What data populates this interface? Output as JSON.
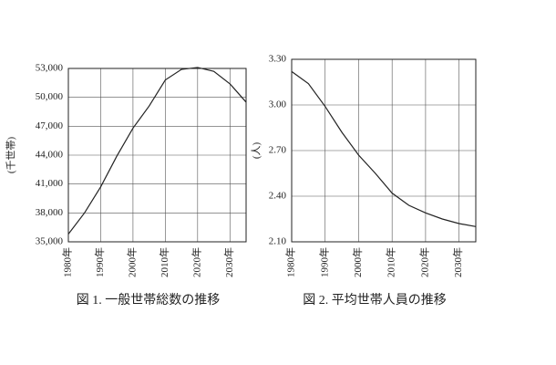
{
  "chart_data": [
    {
      "type": "line",
      "title": "図 1. 一般世帯総数の推移",
      "y_label": "(千世帯)",
      "x": [
        1980,
        1985,
        1990,
        1995,
        2000,
        2005,
        2010,
        2015,
        2020,
        2025,
        2030,
        2035
      ],
      "values": [
        35800,
        38000,
        40700,
        43900,
        46800,
        49100,
        51800,
        52900,
        53100,
        52700,
        51400,
        49500
      ],
      "color": "#222222",
      "xlim": [
        1980,
        2035
      ],
      "xticks": [
        {
          "value": 1980,
          "label": "1980年"
        },
        {
          "value": 1990,
          "label": "1990年"
        },
        {
          "value": 2000,
          "label": "2000年"
        },
        {
          "value": 2010,
          "label": "2010年"
        },
        {
          "value": 2020,
          "label": "2020年"
        },
        {
          "value": 2030,
          "label": "2030年"
        }
      ],
      "ylim": [
        35000,
        53000
      ],
      "yticks": [
        {
          "value": 35000,
          "label": "35,000"
        },
        {
          "value": 38000,
          "label": "38,000"
        },
        {
          "value": 41000,
          "label": "41,000"
        },
        {
          "value": 44000,
          "label": "44,000"
        },
        {
          "value": 47000,
          "label": "47,000"
        },
        {
          "value": 50000,
          "label": "50,000"
        },
        {
          "value": 53000,
          "label": "53,000"
        }
      ],
      "grid": true
    },
    {
      "type": "line",
      "title": "図 2. 平均世帯人員の推移",
      "y_label": "(人)",
      "x": [
        1980,
        1985,
        1990,
        1995,
        2000,
        2005,
        2010,
        2015,
        2020,
        2025,
        2030,
        2035
      ],
      "values": [
        3.22,
        3.14,
        2.99,
        2.82,
        2.67,
        2.55,
        2.42,
        2.34,
        2.29,
        2.25,
        2.22,
        2.2
      ],
      "color": "#222222",
      "xlim": [
        1980,
        2035
      ],
      "xticks": [
        {
          "value": 1980,
          "label": "1980年"
        },
        {
          "value": 1990,
          "label": "1990年"
        },
        {
          "value": 2000,
          "label": "2000年"
        },
        {
          "value": 2010,
          "label": "2010年"
        },
        {
          "value": 2020,
          "label": "2020年"
        },
        {
          "value": 2030,
          "label": "2030年"
        }
      ],
      "ylim": [
        2.1,
        3.3
      ],
      "yticks": [
        {
          "value": 2.1,
          "label": "2.10"
        },
        {
          "value": 2.4,
          "label": "2.40"
        },
        {
          "value": 2.7,
          "label": "2.70"
        },
        {
          "value": 3.0,
          "label": "3.00"
        },
        {
          "value": 3.3,
          "label": "3.30"
        }
      ],
      "grid": true
    }
  ]
}
